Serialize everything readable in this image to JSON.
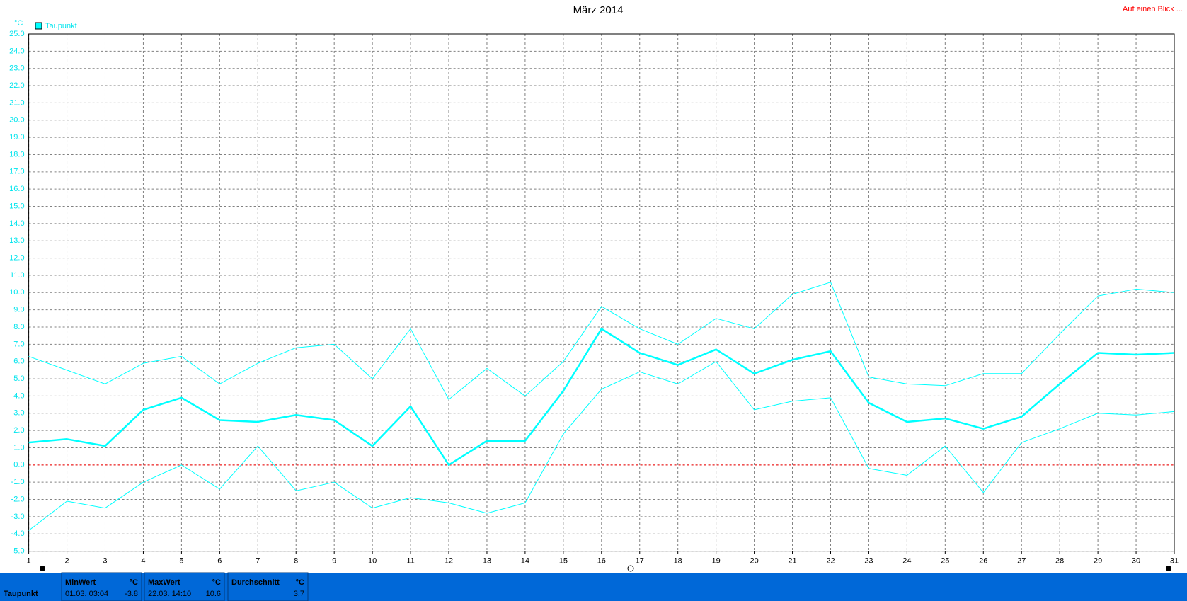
{
  "chart_data": {
    "type": "line",
    "title": "März 2014",
    "y_label": "°C",
    "categories": [
      "1",
      "2",
      "3",
      "4",
      "5",
      "6",
      "7",
      "8",
      "9",
      "10",
      "11",
      "12",
      "13",
      "14",
      "15",
      "16",
      "17",
      "18",
      "19",
      "20",
      "21",
      "22",
      "23",
      "24",
      "25",
      "26",
      "27",
      "28",
      "29",
      "30",
      "31"
    ],
    "series": [
      {
        "name": "Taupunkt",
        "color": "#00ffff",
        "line_width": 2.5,
        "values": [
          1.3,
          1.5,
          1.1,
          3.2,
          3.9,
          2.6,
          2.5,
          2.9,
          2.6,
          1.1,
          3.4,
          0.0,
          1.4,
          1.4,
          4.3,
          7.9,
          6.5,
          5.8,
          6.7,
          5.3,
          6.1,
          6.6,
          3.6,
          2.5,
          2.7,
          2.1,
          2.8,
          4.7,
          6.5,
          6.4,
          6.5
        ]
      },
      {
        "color": "#00ffff",
        "line_width": 1,
        "values": [
          6.3,
          5.5,
          4.7,
          5.9,
          6.3,
          4.7,
          5.9,
          6.8,
          7.0,
          5.0,
          7.9,
          3.8,
          5.6,
          4.0,
          6.0,
          9.2,
          7.9,
          7.0,
          8.5,
          7.9,
          9.9,
          10.6,
          5.1,
          4.7,
          4.6,
          5.3,
          5.3,
          7.6,
          9.8,
          10.2,
          10.0
        ]
      },
      {
        "color": "#00ffff",
        "line_width": 1,
        "values": [
          -3.8,
          -2.1,
          -2.5,
          -1.0,
          0.0,
          -1.4,
          1.1,
          -1.5,
          -1.0,
          -2.5,
          -1.9,
          -2.2,
          -2.8,
          -2.2,
          1.8,
          4.4,
          5.4,
          4.7,
          6.0,
          3.2,
          3.7,
          3.9,
          -0.2,
          -0.6,
          1.1,
          -1.6,
          1.3,
          2.1,
          3.0,
          2.9,
          3.1
        ]
      }
    ],
    "ylim": [
      -5,
      25
    ],
    "yticks": [
      {
        "value": -5,
        "label": "-5.0"
      },
      {
        "value": -4,
        "label": "-4.0"
      },
      {
        "value": -3,
        "label": "-3.0"
      },
      {
        "value": -2,
        "label": "-2.0"
      },
      {
        "value": -1,
        "label": "-1.0"
      },
      {
        "value": 0,
        "label": "0.0"
      },
      {
        "value": 1,
        "label": "1.0"
      },
      {
        "value": 2,
        "label": "2.0"
      },
      {
        "value": 3,
        "label": "3.0"
      },
      {
        "value": 4,
        "label": "4.0"
      },
      {
        "value": 5,
        "label": "5.0"
      },
      {
        "value": 6,
        "label": "6.0"
      },
      {
        "value": 7,
        "label": "7.0"
      },
      {
        "value": 8,
        "label": "8.0"
      },
      {
        "value": 9,
        "label": "9.0"
      },
      {
        "value": 10,
        "label": "10.0"
      },
      {
        "value": 11,
        "label": "11.0"
      },
      {
        "value": 12,
        "label": "12.0"
      },
      {
        "value": 13,
        "label": "13.0"
      },
      {
        "value": 14,
        "label": "14.0"
      },
      {
        "value": 15,
        "label": "15.0"
      },
      {
        "value": 16,
        "label": "16.0"
      },
      {
        "value": 17,
        "label": "17.0"
      },
      {
        "value": 18,
        "label": "18.0"
      },
      {
        "value": 19,
        "label": "19.0"
      },
      {
        "value": 20,
        "label": "20.0"
      },
      {
        "value": 21,
        "label": "21.0"
      },
      {
        "value": 22,
        "label": "22.0"
      },
      {
        "value": 23,
        "label": "23.0"
      },
      {
        "value": 24,
        "label": "24.0"
      },
      {
        "value": 25,
        "label": "25.0"
      }
    ],
    "grid": true,
    "reference_line": {
      "value": 0,
      "color": "#ff0000"
    },
    "legend": "top-left"
  },
  "link": "Auf einen Blick ...",
  "stats": {
    "row_label": "Taupunkt",
    "columns": [
      {
        "header": "MinWert",
        "unit": "°C",
        "date": "01.03.  03:04",
        "value": -3.8
      },
      {
        "header": "MaxWert",
        "unit": "°C",
        "date": "22.03.  14:10",
        "value": 10.6
      },
      {
        "header": "Durchschnitt",
        "unit": "°C",
        "value": 3.7
      }
    ]
  }
}
